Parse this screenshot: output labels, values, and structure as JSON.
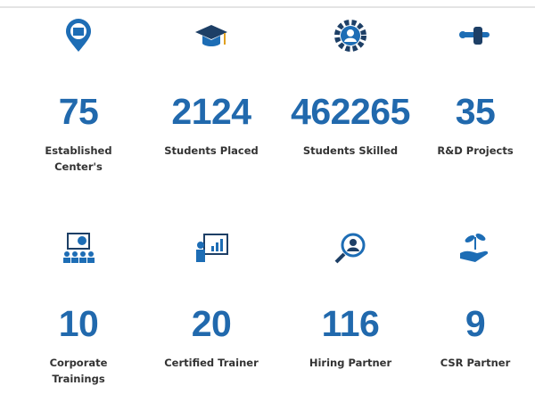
{
  "stats": [
    {
      "value": 75,
      "label": "Established Center's"
    },
    {
      "value": 2124,
      "label": "Students Placed"
    },
    {
      "value": 462265,
      "label": "Students Skilled"
    },
    {
      "value": 35,
      "label": "R&D Projects"
    },
    {
      "value": 10,
      "label": "Corporate Trainings"
    },
    {
      "value": 20,
      "label": "Certified Trainer"
    },
    {
      "value": 116,
      "label": "Hiring Partner"
    },
    {
      "value": 9,
      "label": "CSR Partner"
    }
  ]
}
